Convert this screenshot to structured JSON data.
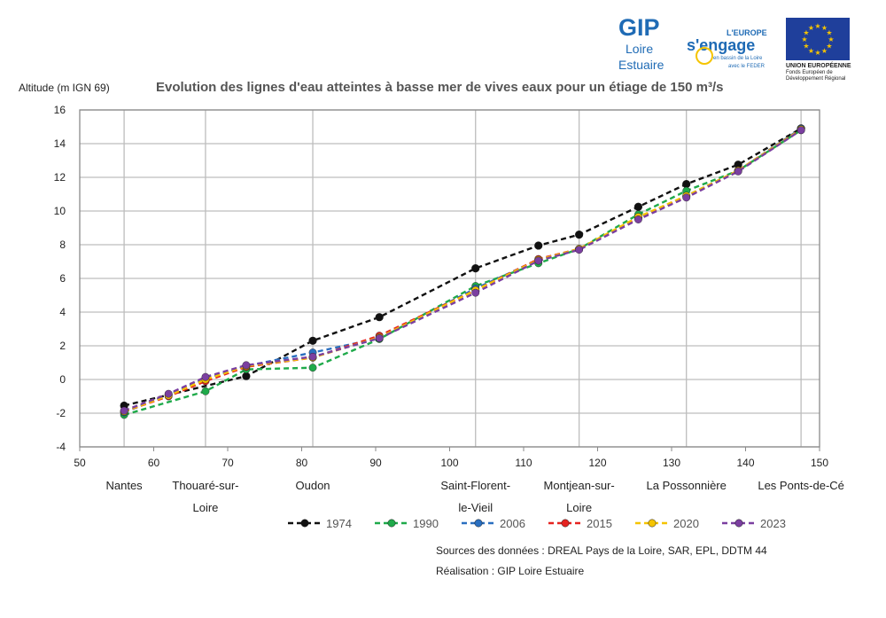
{
  "logos": {
    "gip": {
      "line1": "GIP",
      "line2": "Loire",
      "line3": "Estuaire"
    },
    "europe": {
      "line1": "L'EUROPE",
      "line2": "s'engage",
      "line3": "en bassin de la Loire",
      "line4": "avec le FEDER"
    },
    "eu_flag": {
      "line1": "UNION EUROPÉENNE",
      "line2": "Fonds Européen de",
      "line3": "Développement Régional"
    }
  },
  "sources": {
    "line1": "Sources des données : DREAL Pays de la Loire, SAR, EPL, DDTM 44",
    "line2": "Réalisation : GIP Loire Estuaire"
  },
  "colors": {
    "1974": "#111111",
    "1990": "#1faa4a",
    "2006": "#2a6fc0",
    "2015": "#e52320",
    "2020": "#f5c400",
    "2023": "#7b3fa0",
    "grid": "#bdbdbd",
    "frame": "#8a8a8a"
  },
  "chart_data": {
    "type": "line",
    "title": "Evolution des lignes d'eau atteintes à basse mer de vives eaux pour un étiage de 150 m³/s",
    "ylabel": "Altitude (m IGN 69)",
    "xlabel": "",
    "xlim": [
      50,
      150
    ],
    "ylim": [
      -4,
      16
    ],
    "xticks": [
      50,
      60,
      70,
      80,
      90,
      100,
      110,
      120,
      130,
      140,
      150
    ],
    "yticks": [
      -4,
      -2,
      0,
      2,
      4,
      6,
      8,
      10,
      12,
      14,
      16
    ],
    "grid": true,
    "legend_position": "bottom",
    "places": [
      {
        "x": 56,
        "lines": [
          "Nantes"
        ]
      },
      {
        "x": 67,
        "lines": [
          "Thouaré-sur-",
          "Loire"
        ]
      },
      {
        "x": 81.5,
        "lines": [
          "Oudon"
        ]
      },
      {
        "x": 103.5,
        "lines": [
          "Saint-Florent-",
          "le-Vieil"
        ]
      },
      {
        "x": 117.5,
        "lines": [
          "Montjean-sur-",
          "Loire"
        ]
      },
      {
        "x": 132,
        "lines": [
          "La Possonnière"
        ]
      },
      {
        "x": 147.5,
        "lines": [
          "Les Ponts-de-Cé"
        ]
      }
    ],
    "series": [
      {
        "name": "1974",
        "x": [
          56,
          72.5,
          81.5,
          90.5,
          103.5,
          112,
          117.5,
          125.5,
          132,
          139,
          147.5
        ],
        "y": [
          -1.55,
          0.2,
          2.3,
          3.7,
          6.6,
          7.95,
          8.6,
          10.25,
          11.6,
          12.75,
          14.9
        ]
      },
      {
        "name": "1990",
        "x": [
          56,
          67,
          72.5,
          81.5,
          90.5,
          103.5,
          112,
          117.5,
          125.5,
          132,
          139,
          147.5
        ],
        "y": [
          -2.1,
          -0.7,
          0.6,
          0.7,
          2.4,
          5.55,
          6.9,
          7.75,
          9.8,
          11.2,
          12.4,
          14.8
        ]
      },
      {
        "name": "2006",
        "x": [
          56,
          62,
          67,
          72.5,
          81.5,
          90.5,
          103.5,
          112,
          117.5,
          125.5,
          132,
          139,
          147.5
        ],
        "y": [
          -1.95,
          -0.9,
          0.05,
          0.8,
          1.6,
          2.45,
          5.4,
          7.1,
          7.75,
          9.6,
          10.9,
          12.4,
          14.9
        ]
      },
      {
        "name": "2015",
        "x": [
          56,
          62,
          67,
          72.5,
          81.5,
          90.5,
          103.5,
          112,
          117.5,
          125.5,
          132,
          139,
          147.5
        ],
        "y": [
          -1.9,
          -1.0,
          -0.1,
          0.75,
          1.3,
          2.6,
          5.3,
          7.15,
          7.75,
          9.6,
          10.85,
          12.4,
          14.85
        ]
      },
      {
        "name": "2020",
        "x": [
          56,
          62,
          67,
          72.5,
          81.5,
          90.5,
          103.5,
          112,
          117.5,
          125.5,
          132,
          139,
          147.5
        ],
        "y": [
          -1.9,
          -0.95,
          0.0,
          0.8,
          1.3,
          2.5,
          5.3,
          7.1,
          7.75,
          9.65,
          10.9,
          12.4,
          14.85
        ]
      },
      {
        "name": "2023",
        "x": [
          56,
          62,
          67,
          72.5,
          81.5,
          90.5,
          103.5,
          112,
          117.5,
          125.5,
          132,
          139,
          147.5
        ],
        "y": [
          -1.85,
          -0.85,
          0.15,
          0.85,
          1.35,
          2.45,
          5.15,
          7.05,
          7.7,
          9.5,
          10.8,
          12.35,
          14.8
        ]
      }
    ]
  }
}
